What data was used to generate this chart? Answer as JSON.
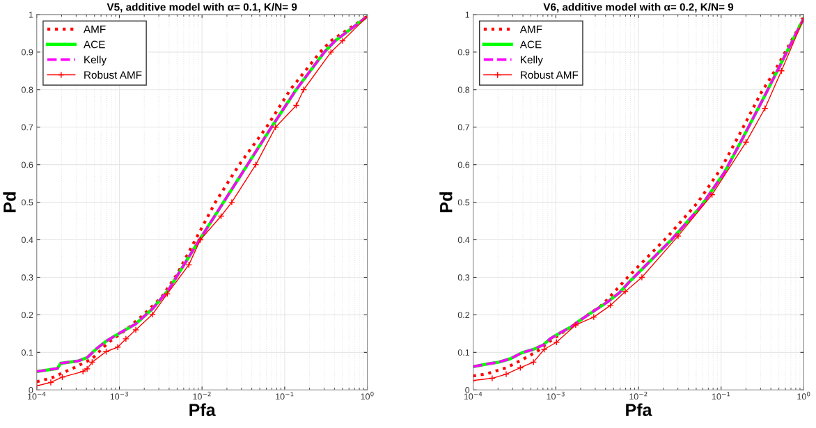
{
  "chart_data": [
    {
      "type": "line",
      "title": "V5, additive model with α= 0.1, K/N= 9",
      "xlabel": "Pfa",
      "ylabel": "Pd",
      "log": "x",
      "grid": true,
      "legend": "top left",
      "xlim": [
        0.0001,
        1
      ],
      "xticks": [
        {
          "value": 0.0001,
          "label": "10$^{−4}$"
        },
        {
          "value": 0.001,
          "label": "10$^{−3}$"
        },
        {
          "value": 0.01,
          "label": "10$^{−2}$"
        },
        {
          "value": 0.1,
          "label": "10$^{−1}$"
        },
        {
          "value": 1,
          "label": "10$^{0}$"
        }
      ],
      "ylim": [
        0,
        1
      ],
      "yticks": [
        0,
        0.1,
        0.2,
        0.3,
        0.4,
        0.5,
        0.6,
        0.7,
        0.8,
        0.9,
        1
      ],
      "series": [
        {
          "name": "AMF",
          "color": "#ff0000",
          "line_style": "dotted",
          "marker": "none",
          "x": [
            0.0001,
            0.000148,
            0.000282,
            0.000468,
            0.000741,
            0.00115,
            0.00191,
            0.00324,
            0.00501,
            0.00832,
            0.0145,
            0.0282,
            0.0603,
            0.117,
            0.269,
            0.363,
            1
          ],
          "values": [
            0.022,
            0.031,
            0.059,
            0.083,
            0.127,
            0.157,
            0.198,
            0.247,
            0.309,
            0.4,
            0.5,
            0.6,
            0.7,
            0.8,
            0.9,
            0.93,
            0.995
          ]
        },
        {
          "name": "ACE",
          "color": "#00ff00",
          "line_style": "solid",
          "marker": "none",
          "x": [
            0.0001,
            0.000178,
            0.000195,
            0.000316,
            0.000407,
            0.000537,
            0.000692,
            0.001,
            0.00158,
            0.00251,
            0.00389,
            0.00537,
            0.00933,
            0.0182,
            0.0355,
            0.0692,
            0.138,
            0.302,
            0.407,
            1
          ],
          "values": [
            0.049,
            0.057,
            0.071,
            0.077,
            0.086,
            0.111,
            0.13,
            0.151,
            0.176,
            0.216,
            0.265,
            0.315,
            0.4,
            0.5,
            0.6,
            0.7,
            0.8,
            0.9,
            0.93,
            0.995
          ]
        },
        {
          "name": "Kelly",
          "color": "#ff00ff",
          "line_style": "dashed",
          "marker": "none",
          "x": [
            0.0001,
            0.000178,
            0.000195,
            0.000316,
            0.000407,
            0.000537,
            0.000692,
            0.001,
            0.00158,
            0.00251,
            0.00389,
            0.00537,
            0.00933,
            0.0182,
            0.0355,
            0.0692,
            0.138,
            0.302,
            0.407,
            1
          ],
          "values": [
            0.049,
            0.057,
            0.071,
            0.077,
            0.086,
            0.111,
            0.13,
            0.151,
            0.176,
            0.216,
            0.265,
            0.315,
            0.4,
            0.5,
            0.6,
            0.7,
            0.8,
            0.9,
            0.93,
            0.995
          ]
        },
        {
          "name": "Robust AMF",
          "color": "#ff0000",
          "line_style": "solid",
          "marker": "cross",
          "x": [
            0.0001,
            0.000148,
            0.000204,
            0.000363,
            0.000407,
            0.000468,
            0.000692,
            0.000955,
            0.0012,
            0.00158,
            0.00251,
            0.0038,
            0.00692,
            0.00955,
            0.017,
            0.0229,
            0.0447,
            0.0776,
            0.138,
            0.17,
            0.363,
            0.501,
            1
          ],
          "values": [
            0.011,
            0.02,
            0.034,
            0.049,
            0.056,
            0.074,
            0.102,
            0.114,
            0.136,
            0.16,
            0.201,
            0.256,
            0.333,
            0.4,
            0.463,
            0.5,
            0.6,
            0.7,
            0.758,
            0.8,
            0.9,
            0.93,
            0.995
          ]
        }
      ]
    },
    {
      "type": "line",
      "title": "V6, additive model with α= 0.2, K/N= 9",
      "xlabel": "Pfa",
      "ylabel": "Pd",
      "log": "x",
      "grid": true,
      "legend": "top left",
      "xlim": [
        0.0001,
        1
      ],
      "xticks": [
        {
          "value": 0.0001,
          "label": "10$^{−4}$"
        },
        {
          "value": 0.001,
          "label": "10$^{−3}$"
        },
        {
          "value": 0.01,
          "label": "10$^{−2}$"
        },
        {
          "value": 0.1,
          "label": "10$^{−1}$"
        },
        {
          "value": 1,
          "label": "10$^{0}$"
        }
      ],
      "ylim": [
        0,
        1
      ],
      "yticks": [
        0,
        0.1,
        0.2,
        0.3,
        0.4,
        0.5,
        0.6,
        0.7,
        0.8,
        0.9,
        1
      ],
      "series": [
        {
          "name": "AMF",
          "color": "#ff0000",
          "line_style": "dotted",
          "marker": "none",
          "x": [
            0.0001,
            0.000148,
            0.000251,
            0.000389,
            0.000617,
            0.000851,
            0.00135,
            0.00224,
            0.00372,
            0.00741,
            0.0229,
            0.0525,
            0.1,
            0.166,
            0.302,
            0.447,
            1
          ],
          "values": [
            0.037,
            0.043,
            0.059,
            0.08,
            0.105,
            0.13,
            0.16,
            0.194,
            0.228,
            0.3,
            0.41,
            0.5,
            0.59,
            0.68,
            0.79,
            0.85,
            0.99
          ]
        },
        {
          "name": "ACE",
          "color": "#00ff00",
          "line_style": "solid",
          "marker": "none",
          "x": [
            0.0001,
            0.000148,
            0.000204,
            0.000282,
            0.000389,
            0.000537,
            0.000708,
            0.000851,
            0.00117,
            0.00151,
            0.00195,
            0.00288,
            0.00427,
            0.00589,
            0.00794,
            0.0251,
            0.0575,
            0.11,
            0.182,
            0.331,
            0.479,
            1
          ],
          "values": [
            0.062,
            0.069,
            0.074,
            0.083,
            0.099,
            0.108,
            0.12,
            0.136,
            0.154,
            0.167,
            0.185,
            0.21,
            0.235,
            0.259,
            0.29,
            0.4,
            0.49,
            0.58,
            0.67,
            0.78,
            0.85,
            0.99
          ]
        },
        {
          "name": "Kelly",
          "color": "#ff00ff",
          "line_style": "dashed",
          "marker": "none",
          "x": [
            0.0001,
            0.000148,
            0.000204,
            0.000282,
            0.000389,
            0.000537,
            0.000708,
            0.000851,
            0.00117,
            0.00151,
            0.00195,
            0.00288,
            0.00427,
            0.00589,
            0.00794,
            0.0251,
            0.0575,
            0.11,
            0.182,
            0.331,
            0.479,
            1
          ],
          "values": [
            0.062,
            0.069,
            0.074,
            0.083,
            0.099,
            0.108,
            0.12,
            0.136,
            0.154,
            0.167,
            0.185,
            0.21,
            0.235,
            0.259,
            0.29,
            0.4,
            0.49,
            0.58,
            0.67,
            0.78,
            0.85,
            0.99
          ]
        },
        {
          "name": "Robust AMF",
          "color": "#ff0000",
          "line_style": "solid",
          "marker": "cross",
          "x": [
            0.0001,
            0.00017,
            0.000251,
            0.000372,
            0.000537,
            0.000724,
            0.00102,
            0.00174,
            0.00288,
            0.00457,
            0.00692,
            0.011,
            0.0302,
            0.0776,
            0.2,
            0.339,
            0.537,
            1
          ],
          "values": [
            0.025,
            0.031,
            0.042,
            0.059,
            0.074,
            0.108,
            0.127,
            0.173,
            0.194,
            0.225,
            0.262,
            0.3,
            0.41,
            0.52,
            0.66,
            0.75,
            0.85,
            0.99
          ]
        }
      ]
    }
  ]
}
